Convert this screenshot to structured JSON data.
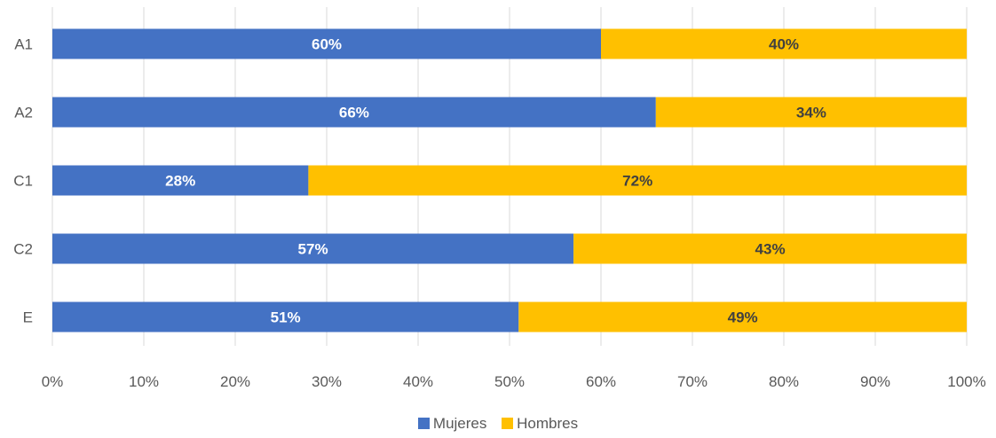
{
  "chart_data": {
    "type": "bar",
    "orientation": "horizontal",
    "stacked": true,
    "percent": true,
    "title": "",
    "xlabel": "",
    "ylabel": "",
    "categories": [
      "A1",
      "A2",
      "C1",
      "C2",
      "E"
    ],
    "series": [
      {
        "name": "Mujeres",
        "values": [
          60,
          66,
          28,
          57,
          51
        ],
        "labels": [
          "60%",
          "66%",
          "28%",
          "57%",
          "51%"
        ],
        "color": "#4472C4",
        "label_color": "#FFFFFF"
      },
      {
        "name": "Hombres",
        "values": [
          40,
          34,
          72,
          43,
          49
        ],
        "labels": [
          "40%",
          "34%",
          "72%",
          "43%",
          "49%"
        ],
        "color": "#FFC000",
        "label_color": "#404040"
      }
    ],
    "xlim": [
      0,
      100
    ],
    "xticks": [
      "0%",
      "10%",
      "20%",
      "30%",
      "40%",
      "50%",
      "60%",
      "70%",
      "80%",
      "90%",
      "100%"
    ],
    "grid": true,
    "legend_position": "bottom"
  }
}
